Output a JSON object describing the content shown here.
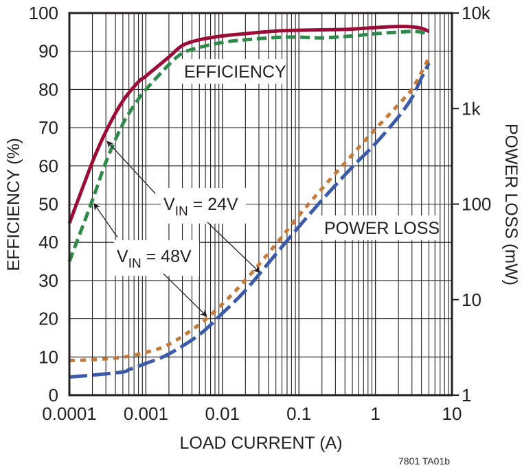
{
  "chart_data": {
    "type": "line",
    "title": "",
    "xlabel": "LOAD CURRENT (A)",
    "ylabel": "EFFICIENCY (%)",
    "y2label": "POWER LOSS (mW)",
    "xscale": "log",
    "xlim": [
      0.0001,
      10
    ],
    "ylim": [
      0,
      100
    ],
    "y2scale": "log",
    "y2lim": [
      1,
      10000
    ],
    "grid": true,
    "x_ticks": [
      "0.0001",
      "0.001",
      "0.01",
      "0.1",
      "1",
      "10"
    ],
    "y_ticks": [
      "0",
      "10",
      "20",
      "30",
      "40",
      "50",
      "60",
      "70",
      "80",
      "90",
      "100"
    ],
    "y2_ticks": [
      "1",
      "10",
      "100",
      "1k",
      "10k"
    ],
    "annotations": [
      {
        "text": "EFFICIENCY",
        "x": 0.006,
        "y": 87
      },
      {
        "text": "POWER LOSS",
        "x": 0.6,
        "y": 44
      },
      {
        "text_main": "V",
        "text_sub": "IN",
        "text_rest": " = 24V",
        "points_to": [
          "Efficiency VIN=24V",
          "Power Loss VIN=24V"
        ]
      },
      {
        "text_main": "V",
        "text_sub": "IN",
        "text_rest": " = 48V",
        "points_to": [
          "Efficiency VIN=48V",
          "Power Loss VIN=48V"
        ]
      }
    ],
    "series": [
      {
        "name": "Efficiency VIN=24V",
        "axis": "left",
        "color": "#9b0c36",
        "style": "solid",
        "x": [
          0.0001,
          0.0002,
          0.0003,
          0.0005,
          0.0008,
          0.001,
          0.002,
          0.003,
          0.005,
          0.01,
          0.02,
          0.05,
          0.1,
          0.2,
          0.5,
          1,
          2,
          3,
          4,
          5
        ],
        "y": [
          45,
          61,
          69,
          77,
          82,
          83.5,
          88.5,
          91.5,
          93,
          94,
          94.6,
          95.3,
          95.5,
          95.6,
          95.8,
          96.2,
          96.5,
          96.4,
          96,
          95.2
        ]
      },
      {
        "name": "Efficiency VIN=48V",
        "axis": "left",
        "color": "#2f8a4a",
        "style": "dashed",
        "x": [
          0.0001,
          0.0002,
          0.0003,
          0.0005,
          0.0008,
          0.001,
          0.002,
          0.003,
          0.005,
          0.01,
          0.02,
          0.05,
          0.1,
          0.2,
          0.5,
          1,
          2,
          3,
          4,
          5
        ],
        "y": [
          35,
          51,
          61,
          71,
          77.5,
          80,
          86.5,
          89.5,
          91,
          92.3,
          93,
          93.6,
          93.7,
          93.5,
          94,
          94.6,
          95,
          95.2,
          95,
          94.2
        ]
      },
      {
        "name": "Power Loss VIN=24V",
        "axis": "right",
        "color": "#3b5ba9",
        "style": "long-dash",
        "x": [
          0.0001,
          0.0002,
          0.0005,
          0.0006,
          0.001,
          0.002,
          0.005,
          0.01,
          0.02,
          0.05,
          0.1,
          0.2,
          0.5,
          1,
          2,
          3,
          4,
          5
        ],
        "y": [
          1.55,
          1.62,
          1.75,
          1.85,
          2.15,
          2.7,
          4.3,
          7.2,
          12.5,
          30,
          58,
          110,
          245,
          430,
          820,
          1300,
          2100,
          3000
        ]
      },
      {
        "name": "Power Loss VIN=48V",
        "axis": "right",
        "color": "#c27b3b",
        "style": "dotted",
        "x": [
          0.0001,
          0.0002,
          0.0005,
          0.001,
          0.002,
          0.005,
          0.01,
          0.02,
          0.05,
          0.1,
          0.2,
          0.5,
          1,
          2,
          3,
          4,
          5
        ],
        "y": [
          2.3,
          2.35,
          2.5,
          2.8,
          3.4,
          5.5,
          9,
          16,
          38,
          76,
          145,
          330,
          610,
          1100,
          1600,
          2400,
          3400
        ]
      }
    ]
  },
  "labels": {
    "efficiency": "EFFICIENCY",
    "power_loss": "POWER LOSS",
    "vin": "V",
    "vin_sub": "IN",
    "vin24_rest": " = 24V",
    "vin48_rest": " = 48V",
    "figure_code": "7801 TA01b"
  }
}
